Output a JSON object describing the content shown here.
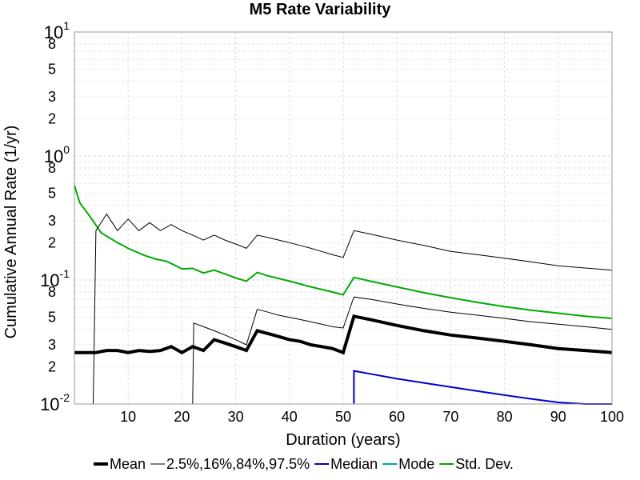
{
  "chart_data": {
    "type": "line",
    "title": "M5 Rate Variability",
    "xlabel": "Duration (years)",
    "ylabel": "Cumulative Annual Rate (1/yr)",
    "xlim": [
      0,
      100
    ],
    "ylim": [
      0.01,
      10
    ],
    "y_scale": "log",
    "grid": true,
    "legend_position": "bottom",
    "x_ticks": [
      10,
      20,
      30,
      40,
      50,
      60,
      70,
      80,
      90,
      100
    ],
    "x_tick_labels": [
      "10",
      "20",
      "30",
      "40",
      "50",
      "60",
      "70",
      "80",
      "90",
      "100"
    ],
    "y_decade_labels": [
      {
        "value": 10,
        "base": "10",
        "exp": "1"
      },
      {
        "value": 1,
        "base": "10",
        "exp": "0"
      },
      {
        "value": 0.1,
        "base": "10",
        "exp": "-1"
      },
      {
        "value": 0.01,
        "base": "10",
        "exp": "-2"
      }
    ],
    "y_minor_labels": [
      {
        "value": 8,
        "label": "8"
      },
      {
        "value": 5,
        "label": "5"
      },
      {
        "value": 3,
        "label": "3"
      },
      {
        "value": 2,
        "label": "2"
      },
      {
        "value": 0.8,
        "label": "8"
      },
      {
        "value": 0.5,
        "label": "5"
      },
      {
        "value": 0.3,
        "label": "3"
      },
      {
        "value": 0.2,
        "label": "2"
      },
      {
        "value": 0.08,
        "label": "8"
      },
      {
        "value": 0.05,
        "label": "5"
      },
      {
        "value": 0.03,
        "label": "3"
      },
      {
        "value": 0.02,
        "label": "2"
      }
    ],
    "series": [
      {
        "name": "Mean",
        "color": "#000000",
        "width": 4,
        "x": [
          0,
          4,
          6,
          8,
          10,
          12,
          14,
          16,
          18,
          20,
          22,
          24,
          26,
          28,
          30,
          32,
          34,
          36,
          38,
          40,
          42,
          44,
          46,
          48,
          50,
          52,
          55,
          60,
          65,
          70,
          75,
          80,
          85,
          90,
          95,
          100
        ],
        "y": [
          0.026,
          0.026,
          0.027,
          0.027,
          0.026,
          0.027,
          0.0265,
          0.027,
          0.029,
          0.026,
          0.029,
          0.027,
          0.033,
          0.031,
          0.029,
          0.027,
          0.039,
          0.037,
          0.035,
          0.033,
          0.032,
          0.03,
          0.029,
          0.028,
          0.026,
          0.051,
          0.048,
          0.043,
          0.039,
          0.036,
          0.034,
          0.032,
          0.03,
          0.028,
          0.027,
          0.026
        ]
      },
      {
        "name": "Std. Dev.",
        "color": "#00aa00",
        "width": 2,
        "x": [
          0,
          1,
          3,
          5,
          8,
          10,
          13,
          15,
          17,
          18,
          20,
          22,
          24,
          26,
          28,
          30,
          32,
          34,
          36,
          40,
          44,
          48,
          50,
          52,
          55,
          60,
          65,
          70,
          75,
          80,
          85,
          90,
          95,
          100
        ],
        "y": [
          0.58,
          0.42,
          0.32,
          0.24,
          0.2,
          0.18,
          0.158,
          0.148,
          0.142,
          0.136,
          0.123,
          0.124,
          0.114,
          0.12,
          0.112,
          0.104,
          0.098,
          0.115,
          0.108,
          0.098,
          0.088,
          0.08,
          0.076,
          0.105,
          0.098,
          0.088,
          0.079,
          0.072,
          0.066,
          0.061,
          0.057,
          0.054,
          0.051,
          0.049
        ]
      },
      {
        "name": "",
        "color": "#000000",
        "width": 1,
        "x": [
          3.5,
          4,
          6,
          8,
          10,
          12,
          14,
          16,
          18,
          20,
          22,
          24,
          26,
          28,
          30,
          32,
          34,
          36,
          38,
          40,
          42,
          44,
          46,
          48,
          50,
          52,
          55,
          60,
          65,
          70,
          75,
          80,
          85,
          90,
          95,
          100
        ],
        "y": [
          0.01,
          0.25,
          0.34,
          0.25,
          0.31,
          0.25,
          0.29,
          0.25,
          0.28,
          0.25,
          0.23,
          0.21,
          0.23,
          0.21,
          0.195,
          0.18,
          0.23,
          0.22,
          0.21,
          0.2,
          0.19,
          0.18,
          0.17,
          0.16,
          0.152,
          0.25,
          0.235,
          0.21,
          0.19,
          0.17,
          0.16,
          0.15,
          0.14,
          0.13,
          0.125,
          0.12
        ]
      },
      {
        "name": "",
        "color": "#000000",
        "width": 1,
        "x": [
          22,
          22.2,
          24,
          26,
          28,
          30,
          32,
          34,
          36,
          38,
          40,
          42,
          44,
          46,
          48,
          50,
          52,
          55,
          60,
          65,
          70,
          75,
          80,
          85,
          90,
          95,
          100
        ],
        "y": [
          0.01,
          0.045,
          0.042,
          0.039,
          0.036,
          0.033,
          0.03,
          0.058,
          0.055,
          0.052,
          0.05,
          0.048,
          0.046,
          0.044,
          0.042,
          0.041,
          0.073,
          0.07,
          0.064,
          0.059,
          0.055,
          0.052,
          0.049,
          0.046,
          0.044,
          0.042,
          0.04
        ]
      },
      {
        "name": "Median",
        "color": "#0000cc",
        "width": 2,
        "x": [
          52,
          52,
          55,
          60,
          65,
          70,
          75,
          80,
          85,
          90,
          95,
          100
        ],
        "y": [
          0.0095,
          0.0185,
          0.0175,
          0.016,
          0.0148,
          0.0137,
          0.0127,
          0.0118,
          0.011,
          0.0103,
          0.0097,
          0.0093
        ]
      }
    ],
    "legend": [
      {
        "label": "Mean",
        "color": "#000000",
        "width": 4
      },
      {
        "label": "2.5%,16%,84%,97.5%",
        "color": "#000000",
        "width": 1
      },
      {
        "label": "Median",
        "color": "#0000cc",
        "width": 2
      },
      {
        "label": "Mode",
        "color": "#00aaaa",
        "width": 2
      },
      {
        "label": "Std. Dev.",
        "color": "#00aa00",
        "width": 2
      }
    ]
  }
}
